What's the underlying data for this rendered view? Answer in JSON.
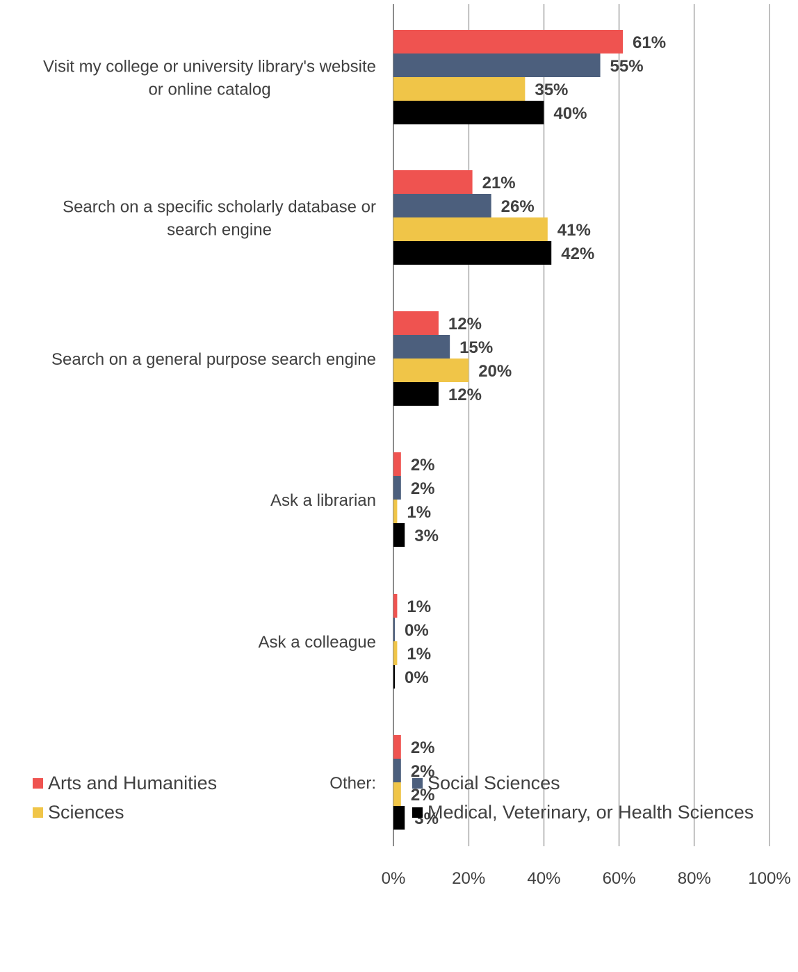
{
  "chart_data": {
    "type": "bar",
    "orientation": "horizontal",
    "categories": [
      "Visit my college or university library's website or online catalog",
      "Search on a specific scholarly database or search engine",
      "Search on a general purpose search engine",
      "Ask a librarian",
      "Ask a colleague",
      "Other:"
    ],
    "category_lines": [
      [
        "Visit my college or university library's website",
        "or online catalog"
      ],
      [
        "Search on a specific scholarly database or",
        "search engine"
      ],
      [
        "Search on a general purpose search engine"
      ],
      [
        "Ask a librarian"
      ],
      [
        "Ask a colleague"
      ],
      [
        "Other:"
      ]
    ],
    "series": [
      {
        "name": "Arts and Humanities",
        "color": "#ef5350",
        "values": [
          61,
          21,
          12,
          2,
          1,
          2
        ],
        "labels": [
          "61%",
          "21%",
          "12%",
          "2%",
          "1%",
          "2%"
        ]
      },
      {
        "name": "Social Sciences",
        "color": "#4c5f7d",
        "values": [
          55,
          26,
          15,
          2,
          0,
          2
        ],
        "labels": [
          "55%",
          "26%",
          "15%",
          "2%",
          "0%",
          "2%"
        ]
      },
      {
        "name": "Sciences",
        "color": "#f0c548",
        "values": [
          35,
          41,
          20,
          1,
          1,
          2
        ],
        "labels": [
          "35%",
          "41%",
          "20%",
          "1%",
          "1%",
          "2%"
        ]
      },
      {
        "name": "Medical, Veterinary, or Health Sciences",
        "color": "#000000",
        "values": [
          40,
          42,
          12,
          3,
          0,
          3
        ],
        "labels": [
          "40%",
          "42%",
          "12%",
          "3%",
          "0%",
          "3%"
        ]
      }
    ],
    "xlim": [
      0,
      100
    ],
    "xticks": [
      "0%",
      "20%",
      "40%",
      "60%",
      "80%",
      "100%"
    ],
    "xtick_values": [
      0,
      20,
      40,
      60,
      80,
      100
    ],
    "grid": true,
    "legend_position": "bottom"
  }
}
